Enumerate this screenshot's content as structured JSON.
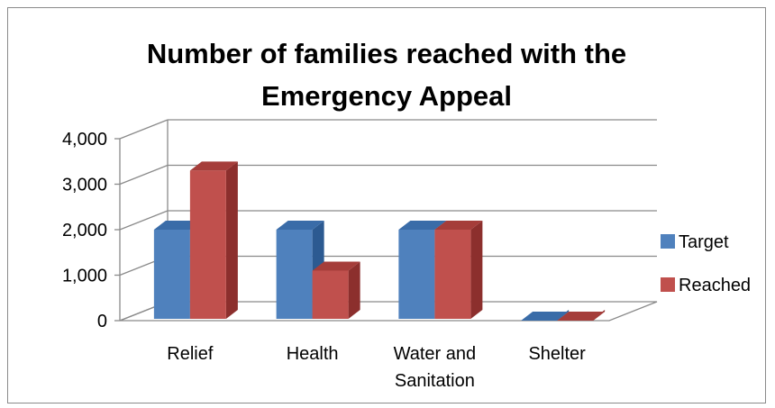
{
  "chart_data": {
    "type": "bar",
    "title_lines": [
      "Number of families reached with the",
      "Emergency Appeal"
    ],
    "categories": [
      [
        "Relief"
      ],
      [
        "Health"
      ],
      [
        "Water and",
        "Sanitation"
      ],
      [
        "Shelter"
      ]
    ],
    "series": [
      {
        "name": "Target",
        "values": [
          2000,
          2000,
          2000,
          0
        ],
        "color": "#4f81bd",
        "side_color": "#2c5a91",
        "top_color": "#3a6ca8"
      },
      {
        "name": "Reached",
        "values": [
          3300,
          1100,
          2000,
          0
        ],
        "color": "#c0504d",
        "side_color": "#8c2f2d",
        "top_color": "#a53d3a"
      }
    ],
    "yticks": [
      0,
      1000,
      2000,
      3000,
      4000
    ],
    "ytick_labels": [
      "0",
      "1,000",
      "2,000",
      "3,000",
      "4,000"
    ],
    "ylim": [
      0,
      4000
    ],
    "style": "3d-clustered-column",
    "grid": true,
    "legend_position": "right"
  }
}
